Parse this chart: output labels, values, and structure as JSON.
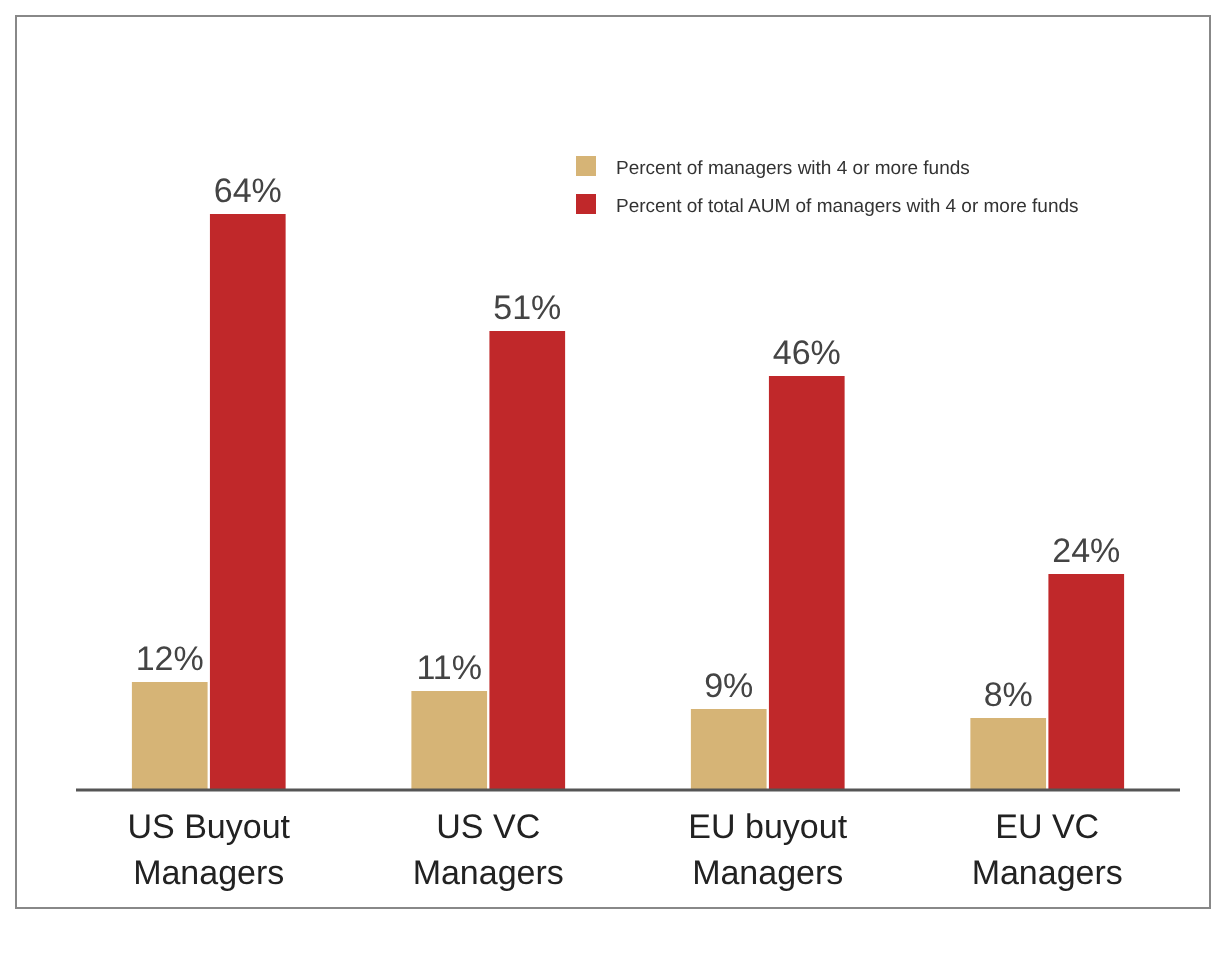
{
  "chart_data": {
    "type": "bar",
    "categories": [
      "US Buyout\nManagers",
      "US VC\nManagers",
      "EU buyout\nManagers",
      "EU VC\nManagers"
    ],
    "series": [
      {
        "name": "Percent of managers with 4 or more funds",
        "color": "#d6b476",
        "values": [
          12,
          11,
          9,
          8
        ],
        "value_labels": [
          "12%",
          "11%",
          "9%",
          "8%"
        ]
      },
      {
        "name": "Percent of total AUM of managers with 4 or more funds",
        "color": "#c0282a",
        "values": [
          64,
          51,
          46,
          24
        ],
        "value_labels": [
          "64%",
          "51%",
          "46%",
          "24%"
        ]
      }
    ],
    "legend": "top right"
  }
}
